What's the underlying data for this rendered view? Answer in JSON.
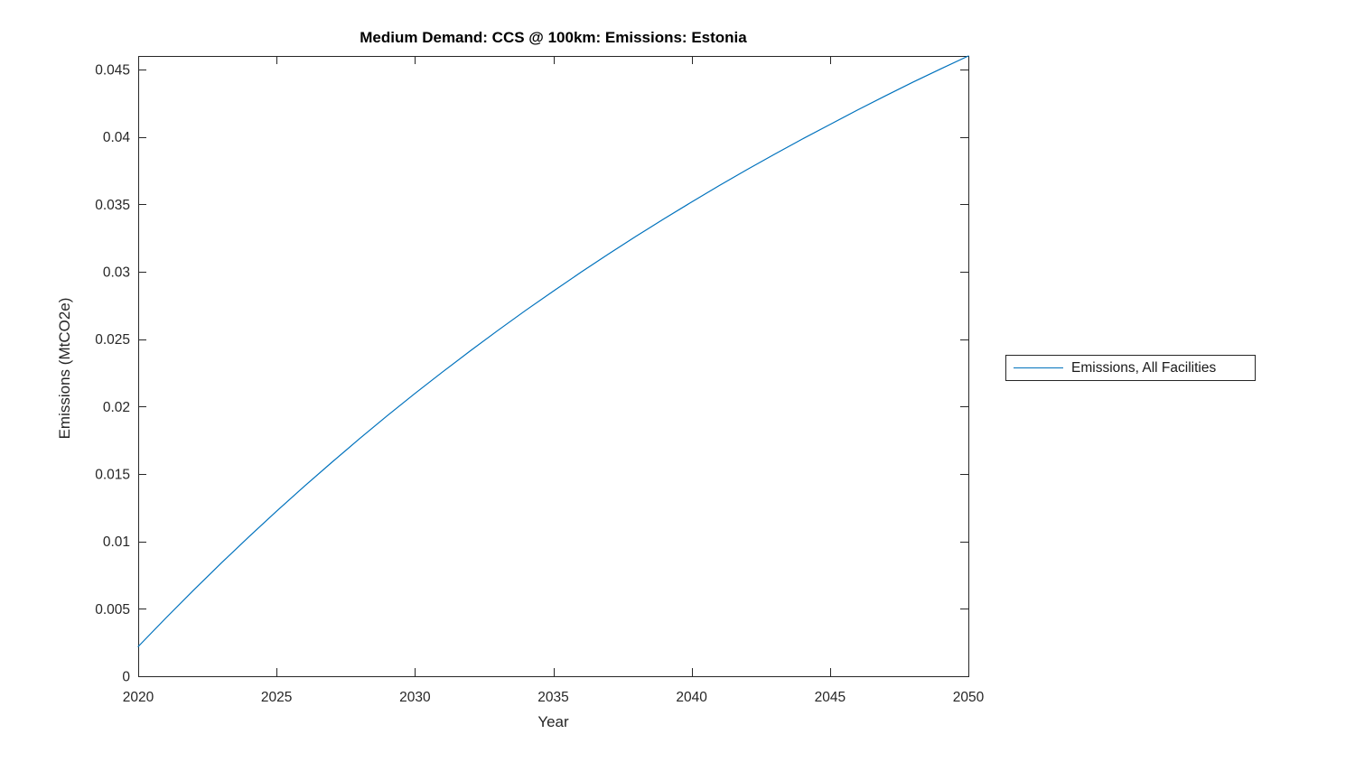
{
  "figure": {
    "background": "#ffffff"
  },
  "chart_data": {
    "type": "line",
    "title": "Medium Demand: CCS @ 100km: Emissions: Estonia",
    "xlabel": "Year",
    "ylabel": "Emissions (MtCO2e)",
    "xlim": [
      2020,
      2050
    ],
    "ylim": [
      0,
      0.046
    ],
    "x_ticks": [
      2020,
      2025,
      2030,
      2035,
      2040,
      2045,
      2050
    ],
    "x_tick_labels": [
      "2020",
      "2025",
      "2030",
      "2035",
      "2040",
      "2045",
      "2050"
    ],
    "y_ticks": [
      0,
      0.005,
      0.01,
      0.015,
      0.02,
      0.025,
      0.03,
      0.035,
      0.04,
      0.045
    ],
    "y_tick_labels": [
      "0",
      "0.005",
      "0.01",
      "0.015",
      "0.02",
      "0.025",
      "0.03",
      "0.035",
      "0.04",
      "0.045"
    ],
    "grid": false,
    "axis_color": "#262626",
    "box": true,
    "tick_direction": "in",
    "legend": {
      "position": "right-outside",
      "entries": [
        {
          "label": "Emissions, All Facilities",
          "color": "#0072BD"
        }
      ]
    },
    "series": [
      {
        "name": "Emissions, All Facilities",
        "color": "#0072BD",
        "x": [
          2020,
          2021,
          2022,
          2023,
          2024,
          2025,
          2026,
          2027,
          2028,
          2029,
          2030,
          2031,
          2032,
          2033,
          2034,
          2035,
          2036,
          2037,
          2038,
          2039,
          2040,
          2041,
          2042,
          2043,
          2044,
          2045,
          2046,
          2047,
          2048,
          2049,
          2050
        ],
        "values": [
          0.0022,
          0.00432,
          0.00638,
          0.00839,
          0.01034,
          0.01224,
          0.01408,
          0.01587,
          0.01762,
          0.01932,
          0.02097,
          0.02257,
          0.02413,
          0.02565,
          0.02713,
          0.02856,
          0.02996,
          0.03132,
          0.03264,
          0.03392,
          0.03517,
          0.03639,
          0.03757,
          0.03872,
          0.03984,
          0.04092,
          0.042,
          0.04304,
          0.04406,
          0.04504,
          0.046
        ]
      }
    ]
  }
}
